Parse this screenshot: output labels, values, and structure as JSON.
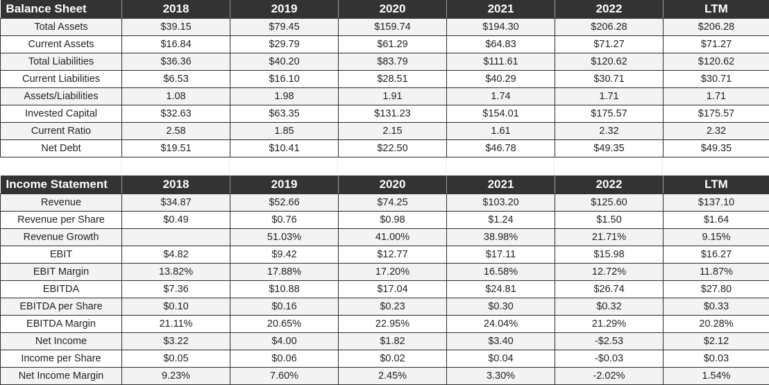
{
  "balance_sheet": {
    "title": "Balance Sheet",
    "columns": [
      "2018",
      "2019",
      "2020",
      "2021",
      "2022",
      "LTM"
    ],
    "rows": [
      {
        "label": "Total Assets",
        "values": [
          "$39.15",
          "$79.45",
          "$159.74",
          "$194.30",
          "$206.28",
          "$206.28"
        ]
      },
      {
        "label": "Current Assets",
        "values": [
          "$16.84",
          "$29.79",
          "$61.29",
          "$64.83",
          "$71.27",
          "$71.27"
        ]
      },
      {
        "label": "Total Liabilities",
        "values": [
          "$36.36",
          "$40.20",
          "$83.79",
          "$111.61",
          "$120.62",
          "$120.62"
        ]
      },
      {
        "label": "Current Liabilities",
        "values": [
          "$6.53",
          "$16.10",
          "$28.51",
          "$40.29",
          "$30.71",
          "$30.71"
        ]
      },
      {
        "label": "Assets/Liabilities",
        "values": [
          "1.08",
          "1.98",
          "1.91",
          "1.74",
          "1.71",
          "1.71"
        ]
      },
      {
        "label": "Invested Capital",
        "values": [
          "$32.63",
          "$63.35",
          "$131.23",
          "$154.01",
          "$175.57",
          "$175.57"
        ]
      },
      {
        "label": "Current Ratio",
        "values": [
          "2.58",
          "1.85",
          "2.15",
          "1.61",
          "2.32",
          "2.32"
        ]
      },
      {
        "label": "Net Debt",
        "values": [
          "$19.51",
          "$10.41",
          "$22.50",
          "$46.78",
          "$49.35",
          "$49.35"
        ]
      }
    ]
  },
  "income_statement": {
    "title": "Income Statement",
    "columns": [
      "2018",
      "2019",
      "2020",
      "2021",
      "2022",
      "LTM"
    ],
    "rows": [
      {
        "label": "Revenue",
        "values": [
          "$34.87",
          "$52.66",
          "$74.25",
          "$103.20",
          "$125.60",
          "$137.10"
        ]
      },
      {
        "label": "Revenue per Share",
        "values": [
          "$0.49",
          "$0.76",
          "$0.98",
          "$1.24",
          "$1.50",
          "$1.64"
        ]
      },
      {
        "label": "Revenue Growth",
        "values": [
          "",
          "51.03%",
          "41.00%",
          "38.98%",
          "21.71%",
          "9.15%"
        ]
      },
      {
        "label": "EBIT",
        "values": [
          "$4.82",
          "$9.42",
          "$12.77",
          "$17.11",
          "$15.98",
          "$16.27"
        ]
      },
      {
        "label": "EBIT Margin",
        "values": [
          "13.82%",
          "17.88%",
          "17.20%",
          "16.58%",
          "12.72%",
          "11.87%"
        ]
      },
      {
        "label": "EBITDA",
        "values": [
          "$7.36",
          "$10.88",
          "$17.04",
          "$24.81",
          "$26.74",
          "$27.80"
        ]
      },
      {
        "label": "EBITDA per Share",
        "values": [
          "$0.10",
          "$0.16",
          "$0.23",
          "$0.30",
          "$0.32",
          "$0.33"
        ]
      },
      {
        "label": "EBITDA Margin",
        "values": [
          "21.11%",
          "20.65%",
          "22.95%",
          "24.04%",
          "21.29%",
          "20.28%"
        ]
      },
      {
        "label": "Net Income",
        "values": [
          "$3.22",
          "$4.00",
          "$1.82",
          "$3.40",
          "-$2.53",
          "$2.12"
        ]
      },
      {
        "label": "Income per Share",
        "values": [
          "$0.05",
          "$0.06",
          "$0.02",
          "$0.04",
          "-$0.03",
          "$0.03"
        ]
      },
      {
        "label": "Net Income Margin",
        "values": [
          "9.23%",
          "7.60%",
          "2.45%",
          "3.30%",
          "-2.02%",
          "1.54%"
        ]
      }
    ]
  }
}
